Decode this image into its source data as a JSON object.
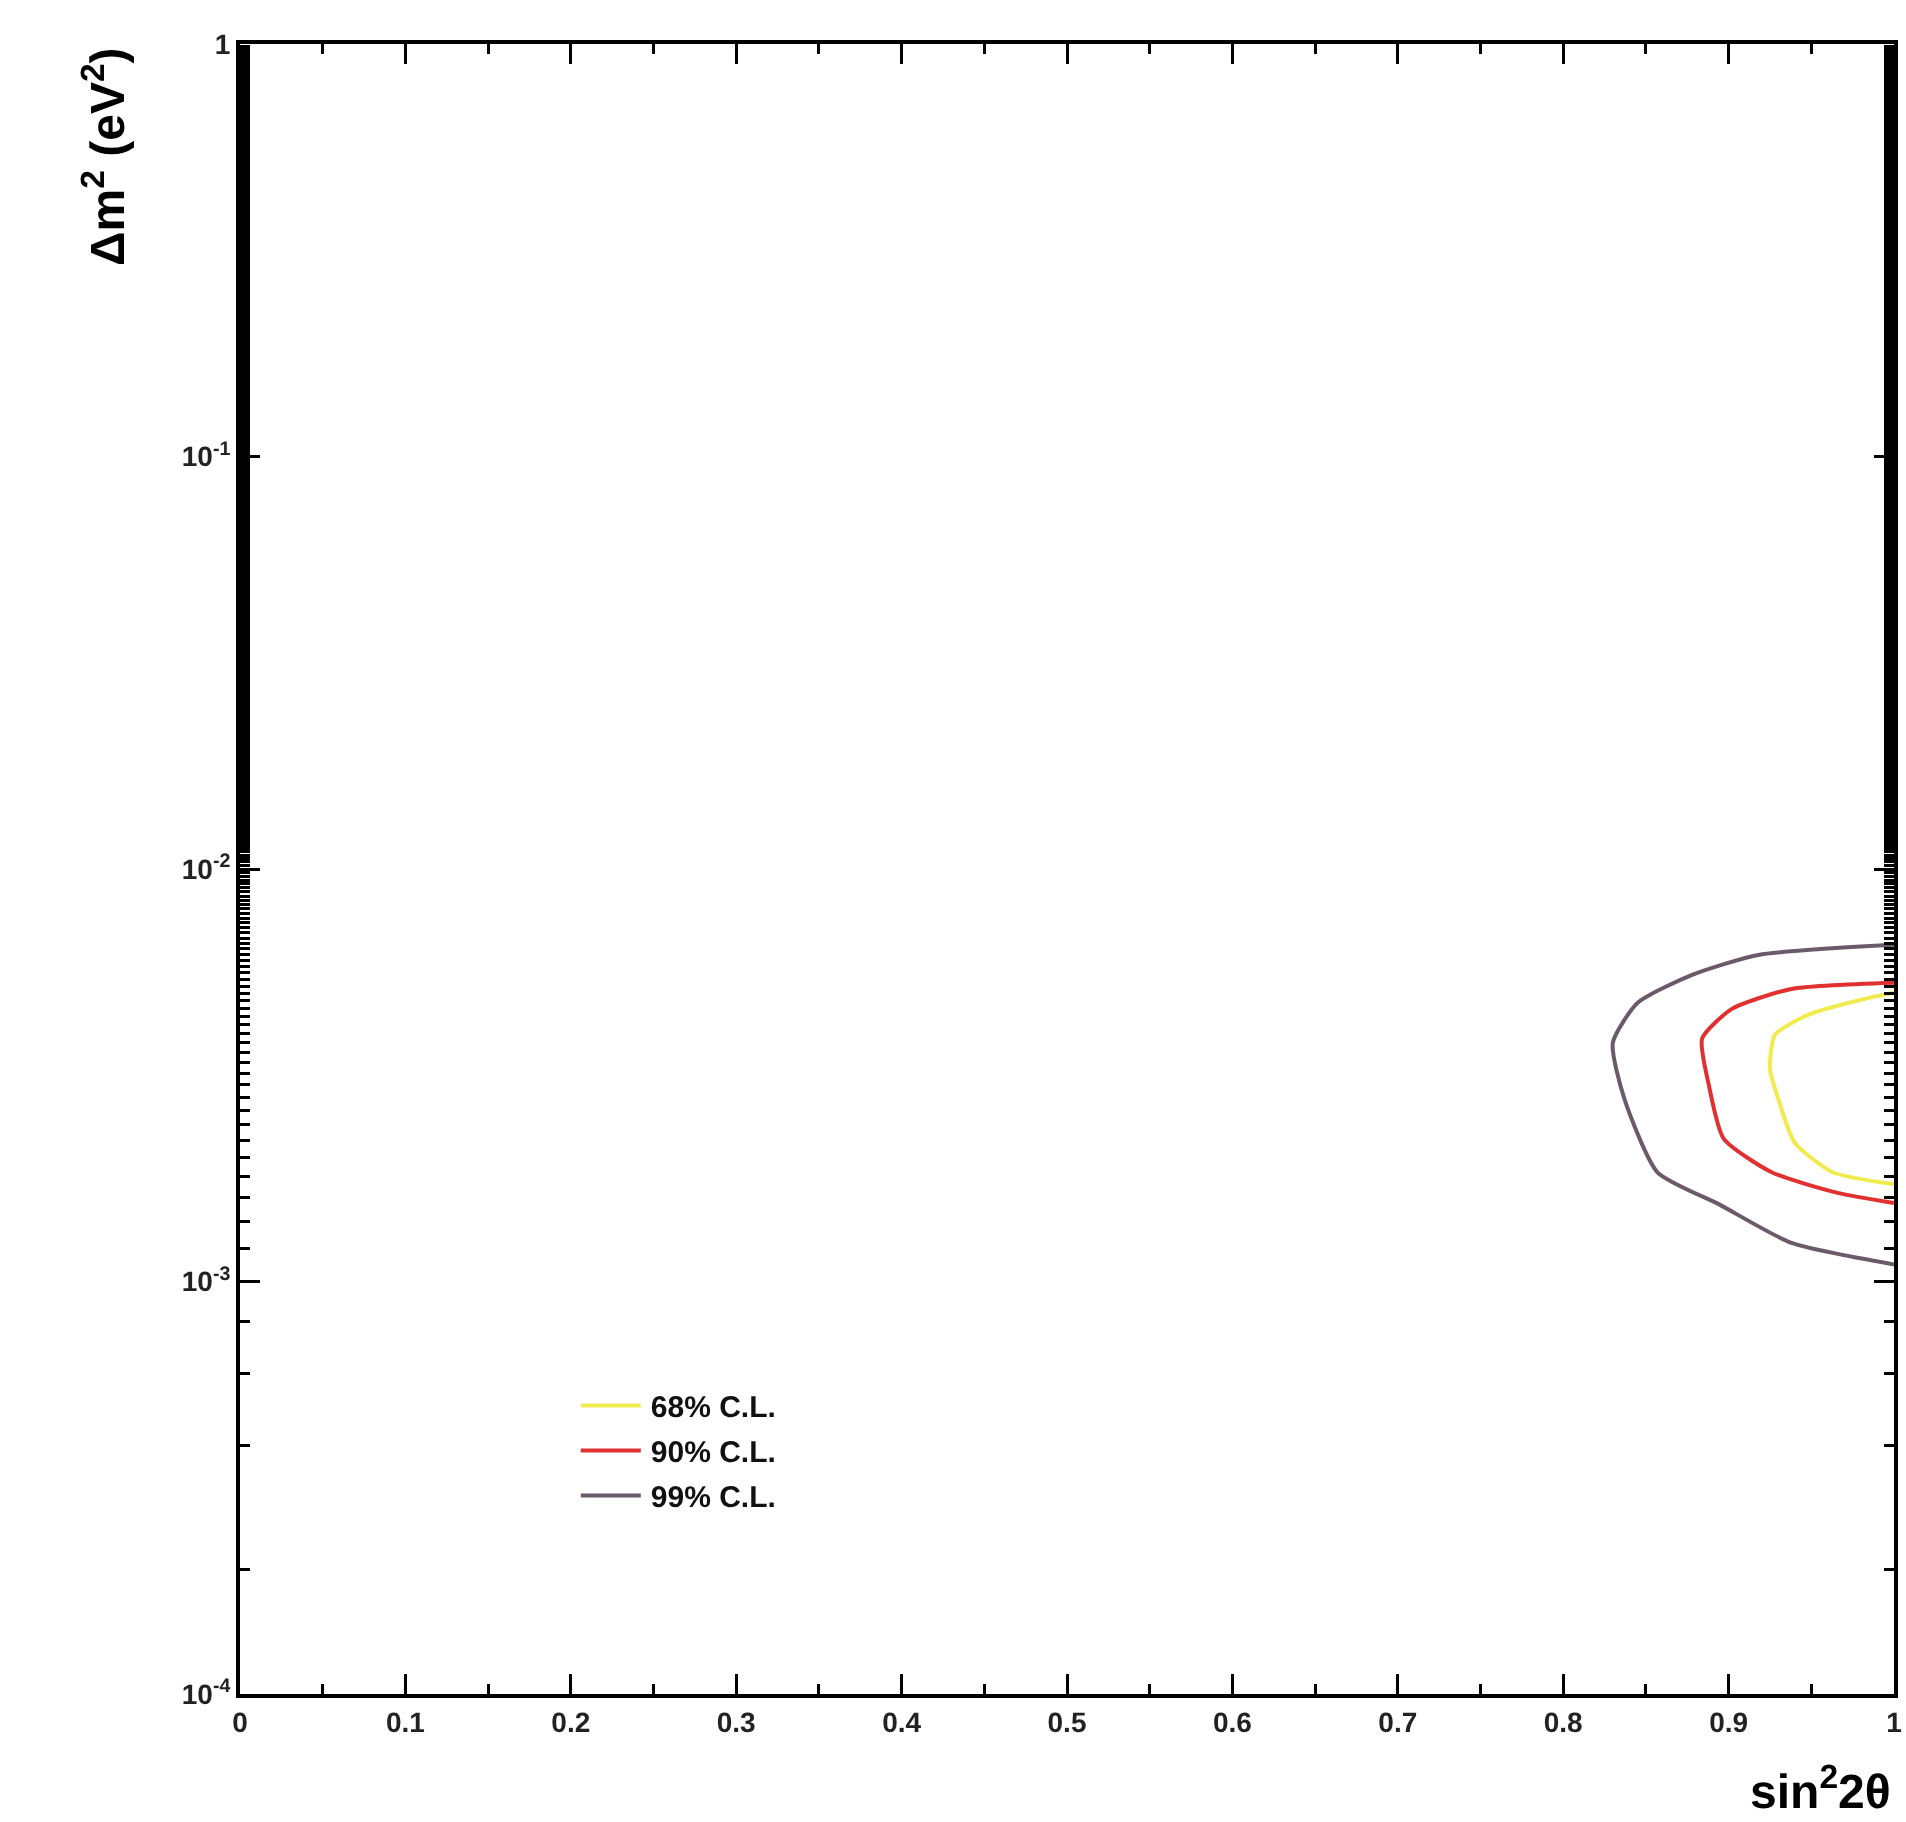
{
  "chart_data": {
    "type": "line",
    "xlabel": "sin$^{2}$2θ",
    "ylabel": "Δm$^{2}$ (eV$^{2}$)",
    "log": "y",
    "grid": false,
    "legend": "bottom left",
    "marker": "none",
    "line_style": "solid",
    "xlim": [
      0,
      1
    ],
    "xticks": [
      0,
      0.1,
      0.2,
      0.3,
      0.4,
      0.5,
      0.6,
      0.7,
      0.8,
      0.9,
      1
    ],
    "ylim": [
      0.0001,
      1
    ],
    "yticks": [
      {
        "value": 0.0001,
        "label": "10$^{-4}$"
      },
      {
        "value": 0.001,
        "label": "10$^{-3}$"
      },
      {
        "value": 0.01,
        "label": "10$^{-2}$"
      },
      {
        "value": 0.1,
        "label": "10$^{-1}$"
      },
      1
    ],
    "series": [
      {
        "name": "68% C.L.",
        "color": "#f0ec50",
        "x": [
          1.0,
          0.982,
          0.948,
          0.928,
          0.925,
          0.93,
          0.94,
          0.963,
          1.0
        ],
        "values": [
          0.00501,
          0.00484,
          0.00443,
          0.00396,
          0.00328,
          0.00277,
          0.00217,
          0.00184,
          0.00172
        ]
      },
      {
        "name": "90% C.L.",
        "color": "#e03030",
        "x": [
          1.0,
          0.938,
          0.902,
          0.884,
          0.888,
          0.897,
          0.926,
          0.966,
          1.0
        ],
        "values": [
          0.0053,
          0.00512,
          0.00458,
          0.00388,
          0.003,
          0.00222,
          0.00184,
          0.00164,
          0.00155
        ]
      },
      {
        "name": "99% C.L.",
        "color": "#6a5a6a",
        "x": [
          1.0,
          0.918,
          0.878,
          0.845,
          0.83,
          0.837,
          0.857,
          0.894,
          0.938,
          1.0
        ],
        "values": [
          0.00655,
          0.00619,
          0.00554,
          0.00474,
          0.00379,
          0.00277,
          0.00184,
          0.00154,
          0.00124,
          0.0011
        ]
      }
    ]
  }
}
